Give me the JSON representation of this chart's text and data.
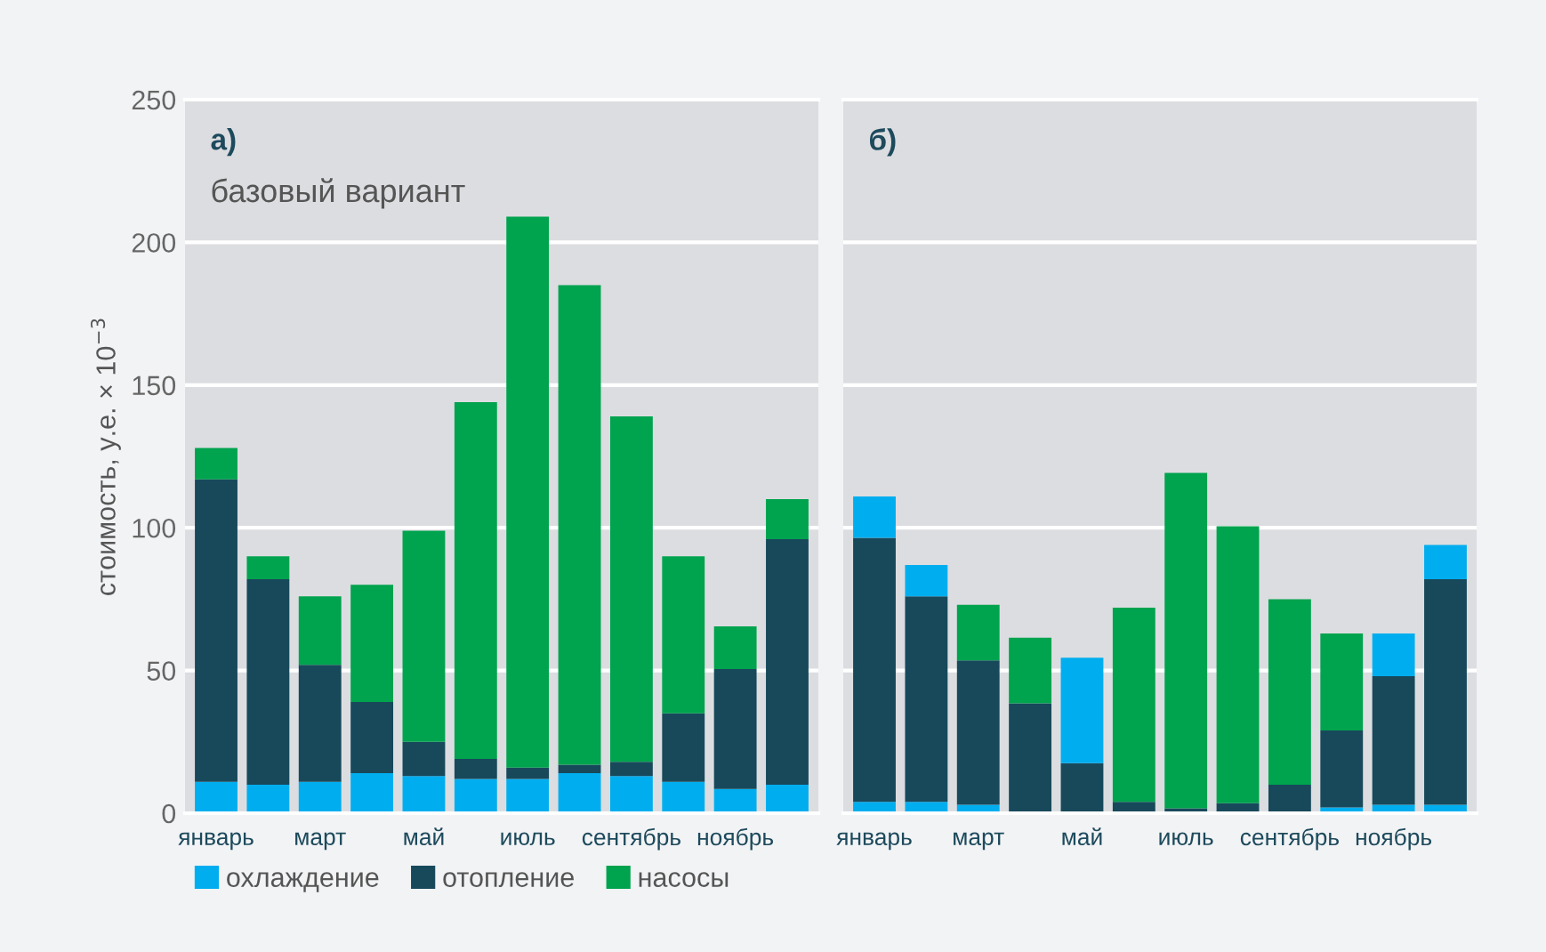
{
  "chart_data": [
    {
      "type": "bar",
      "stacked": true,
      "title": "а)",
      "subtitle": "базовый вариант",
      "ylabel": "стоимость, у.е. × 10$^{−3}$",
      "categories": [
        "январь",
        null,
        "март",
        null,
        "май",
        null,
        "июль",
        null,
        "сентябрь",
        null,
        "ноябрь",
        null
      ],
      "series": [
        {
          "name": "охлаждение",
          "color": "#00aeef",
          "values": [
            11,
            10,
            11,
            14,
            13,
            12,
            12,
            14,
            13,
            11,
            8.5,
            10
          ]
        },
        {
          "name": "отопление",
          "color": "#17495b",
          "values": [
            106,
            72,
            41,
            25,
            12,
            7,
            4,
            3,
            5,
            24,
            42,
            86
          ]
        },
        {
          "name": "насосы",
          "color": "#00a34e",
          "values": [
            11,
            8,
            24,
            41,
            74,
            125,
            193,
            168,
            121,
            55,
            15,
            14
          ]
        }
      ],
      "ylim": [
        0,
        250
      ],
      "yticks": [
        0,
        50,
        100,
        150,
        200,
        250
      ],
      "grid": "y",
      "legend": "bottom"
    },
    {
      "type": "bar",
      "stacked": true,
      "title": "б)",
      "categories": [
        "январь",
        null,
        "март",
        null,
        "май",
        null,
        "июль",
        null,
        "сентябрь",
        null,
        "ноябрь",
        null
      ],
      "series": [
        {
          "color": "#00aeef",
          "values": [
            4,
            4,
            3,
            null,
            null,
            0,
            0,
            0,
            0,
            2,
            3,
            3
          ]
        },
        {
          "color": "#17495b",
          "values": [
            92.5,
            72,
            50.5,
            38.5,
            17.5,
            4,
            1.7,
            3.5,
            10,
            27,
            45,
            79
          ]
        },
        {
          "color": "#00a34e",
          "values": [
            0,
            0,
            19.5,
            23,
            0,
            68,
            117.5,
            97,
            65,
            34,
            0,
            0
          ]
        },
        {
          "color": "#00aeef",
          "values": [
            14.5,
            11,
            0,
            0,
            37,
            0,
            0,
            0,
            0,
            0,
            15,
            12
          ]
        }
      ],
      "ylim": [
        0,
        250
      ],
      "yticks": [
        0,
        50,
        100,
        150,
        200,
        250
      ],
      "grid": "y",
      "tick_labels": "x"
    }
  ]
}
